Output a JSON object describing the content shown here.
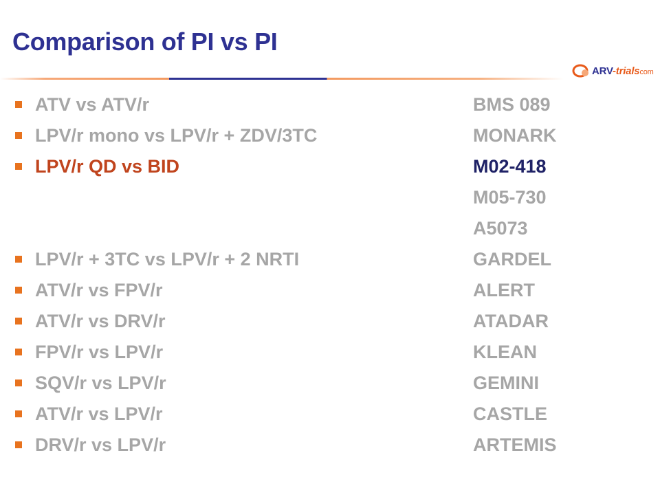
{
  "slide": {
    "title": "Comparison of PI vs PI",
    "logo": {
      "brand": "ARV",
      "dash": "-",
      "trials": "trials",
      "com": "com"
    },
    "colors": {
      "title": "#2e3192",
      "bullet": "#e8731f",
      "highlight": "#c0441d",
      "muted": "#a6a6a6"
    },
    "rows": [
      {
        "label": "ATV vs ATV/r",
        "trials": [
          "BMS 089"
        ]
      },
      {
        "label": "LPV/r mono vs LPV/r + ZDV/3TC",
        "trials": [
          "MONARK"
        ]
      },
      {
        "label": "LPV/r QD vs BID",
        "trials": [
          "M02-418",
          "M05-730",
          "A5073"
        ],
        "highlighted": true
      },
      {
        "label": "LPV/r + 3TC vs LPV/r + 2 NRTI",
        "trials": [
          "GARDEL"
        ]
      },
      {
        "label": "ATV/r vs FPV/r",
        "trials": [
          "ALERT"
        ]
      },
      {
        "label": "ATV/r vs DRV/r",
        "trials": [
          "ATADAR"
        ]
      },
      {
        "label": "FPV/r vs LPV/r",
        "trials": [
          "KLEAN"
        ]
      },
      {
        "label": "SQV/r vs LPV/r",
        "trials": [
          "GEMINI"
        ]
      },
      {
        "label": "ATV/r vs LPV/r",
        "trials": [
          "CASTLE"
        ]
      },
      {
        "label": "DRV/r vs LPV/r",
        "trials": [
          "ARTEMIS"
        ]
      }
    ]
  }
}
